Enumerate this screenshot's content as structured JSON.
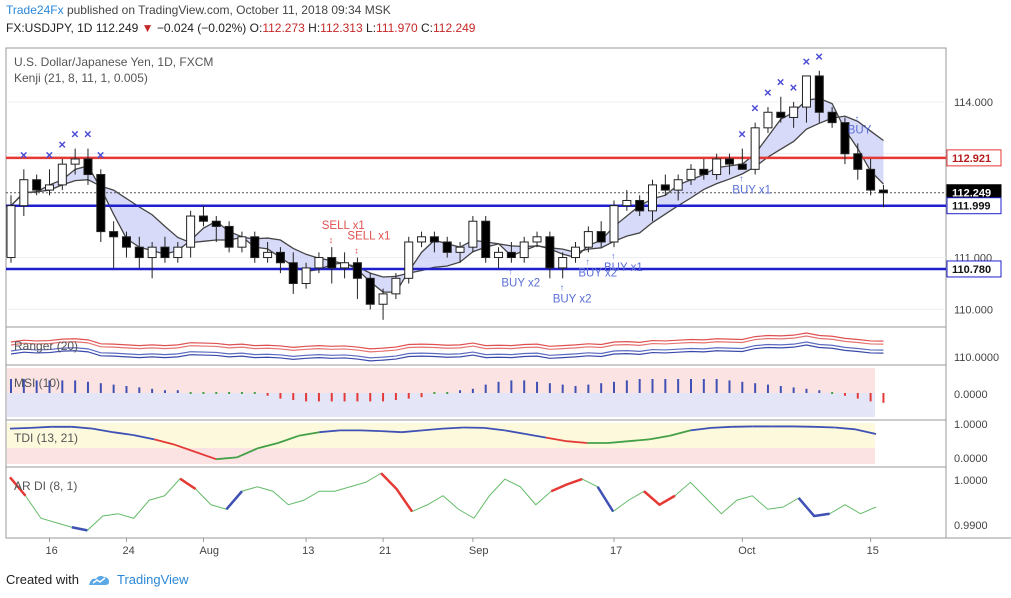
{
  "header": {
    "brand": "Trade24Fx",
    "published_text": "published on TradingView.com, October 11, 2018 09:34 MSK",
    "symbol": "FX:USDJPY, 1D",
    "last": "112.249",
    "change": "−0.024 (−0.02%)",
    "o_label": "O:",
    "o_val": "112.273",
    "h_label": "H:",
    "h_val": "112.313",
    "l_label": "L:",
    "l_val": "111.970",
    "c_label": "C:",
    "c_val": "112.249"
  },
  "legend": {
    "title": "U.S. Dollar/Japanese Yen, 1D, FXCM",
    "kenji": "Kenji (21, 8, 11, 1, 0.005)",
    "ranger": "Ranger (20)",
    "msi": "MSI (10)",
    "tdi": "TDI (13, 21)",
    "ardi": "AR DI (8, 1)"
  },
  "footer": {
    "created_with": "Created with",
    "tradingview": "TradingView"
  },
  "colors": {
    "up": "#ffffff",
    "down": "#000000",
    "red_level": "#e53935",
    "blue_level": "#1f1fcc",
    "cloud_blue": "#c9cdf5",
    "cloud_green": "#d8f2d0",
    "signal_blue": "#5b6fd6",
    "signal_red": "#e05050"
  },
  "chart_data": {
    "type": "candlestick",
    "title": "U.S. Dollar/Japanese Yen, 1D, FXCM",
    "ylim": [
      109.7,
      115.0
    ],
    "y_ticks": [
      "114.000",
      "111.000",
      "110.000"
    ],
    "x_ticks": [
      "16",
      "24",
      "Aug",
      "13",
      "21",
      "Sep",
      "17",
      "Oct",
      "15"
    ],
    "levels": [
      {
        "value": 112.921,
        "label": "112.921",
        "color": "red"
      },
      {
        "value": 112.249,
        "label": "112.249",
        "color": "black"
      },
      {
        "value": 111.999,
        "label": "111.999",
        "color": "blue"
      },
      {
        "value": 110.78,
        "label": "110.780",
        "color": "blue"
      }
    ],
    "candles": [
      [
        111.0,
        112.2,
        110.9,
        112.0
      ],
      [
        112.0,
        112.7,
        111.8,
        112.5
      ],
      [
        112.5,
        112.6,
        112.2,
        112.3
      ],
      [
        112.3,
        112.7,
        112.2,
        112.4
      ],
      [
        112.4,
        112.9,
        112.3,
        112.8
      ],
      [
        112.8,
        113.1,
        112.6,
        112.9
      ],
      [
        112.9,
        113.1,
        112.4,
        112.6
      ],
      [
        112.6,
        112.7,
        111.3,
        111.5
      ],
      [
        111.5,
        111.7,
        110.8,
        111.4
      ],
      [
        111.4,
        111.5,
        111.0,
        111.2
      ],
      [
        111.2,
        111.4,
        110.8,
        111.0
      ],
      [
        111.0,
        111.3,
        110.6,
        111.2
      ],
      [
        111.2,
        111.4,
        110.9,
        111.0
      ],
      [
        111.0,
        111.3,
        110.9,
        111.2
      ],
      [
        111.2,
        111.9,
        111.0,
        111.8
      ],
      [
        111.8,
        112.0,
        111.6,
        111.7
      ],
      [
        111.7,
        111.8,
        111.3,
        111.6
      ],
      [
        111.6,
        111.7,
        111.1,
        111.2
      ],
      [
        111.2,
        111.5,
        111.1,
        111.4
      ],
      [
        111.4,
        111.5,
        110.9,
        111.0
      ],
      [
        111.0,
        111.3,
        110.9,
        111.1
      ],
      [
        111.1,
        111.2,
        110.7,
        110.9
      ],
      [
        110.9,
        111.1,
        110.3,
        110.5
      ],
      [
        110.5,
        110.9,
        110.4,
        110.8
      ],
      [
        110.8,
        111.1,
        110.7,
        111.0
      ],
      [
        111.0,
        111.2,
        110.5,
        110.8
      ],
      [
        110.8,
        111.1,
        110.6,
        110.9
      ],
      [
        110.9,
        111.0,
        110.2,
        110.6
      ],
      [
        110.6,
        110.7,
        110.0,
        110.1
      ],
      [
        110.1,
        110.4,
        109.8,
        110.3
      ],
      [
        110.3,
        110.7,
        110.2,
        110.6
      ],
      [
        110.6,
        111.4,
        110.5,
        111.3
      ],
      [
        111.3,
        111.5,
        111.2,
        111.4
      ],
      [
        111.4,
        111.5,
        111.1,
        111.3
      ],
      [
        111.3,
        111.4,
        111.0,
        111.1
      ],
      [
        111.1,
        111.3,
        110.9,
        111.2
      ],
      [
        111.2,
        111.8,
        111.1,
        111.7
      ],
      [
        111.7,
        111.8,
        110.9,
        111.0
      ],
      [
        111.0,
        111.2,
        110.8,
        111.1
      ],
      [
        111.1,
        111.3,
        110.9,
        111.0
      ],
      [
        111.0,
        111.4,
        110.9,
        111.3
      ],
      [
        111.3,
        111.5,
        111.2,
        111.4
      ],
      [
        111.4,
        111.5,
        110.6,
        110.8
      ],
      [
        110.8,
        111.1,
        110.6,
        111.0
      ],
      [
        111.0,
        111.3,
        110.9,
        111.2
      ],
      [
        111.2,
        111.6,
        111.1,
        111.5
      ],
      [
        111.5,
        111.7,
        111.2,
        111.3
      ],
      [
        111.3,
        112.1,
        111.2,
        112.0
      ],
      [
        112.0,
        112.3,
        111.9,
        112.1
      ],
      [
        112.1,
        112.2,
        111.8,
        111.9
      ],
      [
        111.9,
        112.5,
        111.7,
        112.4
      ],
      [
        112.4,
        112.6,
        112.2,
        112.3
      ],
      [
        112.3,
        112.6,
        112.1,
        112.5
      ],
      [
        112.5,
        112.8,
        112.4,
        112.7
      ],
      [
        112.7,
        112.9,
        112.5,
        112.6
      ],
      [
        112.6,
        113.0,
        112.5,
        112.9
      ],
      [
        112.9,
        113.0,
        112.6,
        112.8
      ],
      [
        112.8,
        113.1,
        112.7,
        112.7
      ],
      [
        112.7,
        113.6,
        112.6,
        113.5
      ],
      [
        113.5,
        113.9,
        113.4,
        113.8
      ],
      [
        113.8,
        114.1,
        113.6,
        113.7
      ],
      [
        113.7,
        114.0,
        113.5,
        113.9
      ],
      [
        113.9,
        114.5,
        113.6,
        114.5
      ],
      [
        114.5,
        114.6,
        113.6,
        113.8
      ],
      [
        113.8,
        113.9,
        113.5,
        113.6
      ],
      [
        113.6,
        113.7,
        112.8,
        113.0
      ],
      [
        113.0,
        113.2,
        112.5,
        112.7
      ],
      [
        112.7,
        112.9,
        112.2,
        112.3
      ],
      [
        112.3,
        112.4,
        111.97,
        112.249
      ]
    ],
    "signals": [
      {
        "label": "SELL x1"
      },
      {
        "label": "SELL x1"
      },
      {
        "label": "BUY x2"
      },
      {
        "label": "BUY x2"
      },
      {
        "label": "BUY x2"
      },
      {
        "label": "BUY x1"
      },
      {
        "label": "BUY x1"
      },
      {
        "label": "BUY"
      }
    ],
    "ranger": {
      "ticks": [
        "110.0000"
      ]
    },
    "msi": {
      "ticks": [
        "0.0000"
      ],
      "values": [
        1,
        1,
        0.9,
        0.9,
        0.9,
        0.9,
        0.8,
        0.7,
        0.6,
        0.5,
        0.4,
        0.3,
        0.2,
        0.2,
        0.1,
        0.1,
        0.1,
        0.1,
        0.1,
        0.1,
        -0.2,
        -0.4,
        -0.5,
        -0.6,
        -0.6,
        -0.6,
        -0.6,
        -0.6,
        -0.6,
        -0.6,
        -0.5,
        -0.4,
        -0.3,
        -0.1,
        0.1,
        0.2,
        0.3,
        0.6,
        0.8,
        0.9,
        0.9,
        0.8,
        0.7,
        0.6,
        0.5,
        0.6,
        0.7,
        0.8,
        0.9,
        1,
        1,
        1,
        1,
        1,
        1,
        1,
        0.9,
        0.8,
        0.7,
        0.6,
        0.5,
        0.4,
        0.3,
        0.2,
        0.1,
        -0.2,
        -0.4,
        -0.6,
        -0.7
      ]
    },
    "tdi": {
      "ticks": [
        "1.0000",
        "0.0000"
      ],
      "values": [
        0.9,
        0.92,
        0.95,
        0.95,
        0.9,
        0.8,
        0.72,
        0.6,
        0.45,
        0.25,
        0.05,
        0.1,
        0.35,
        0.5,
        0.7,
        0.8,
        0.85,
        0.85,
        0.83,
        0.8,
        0.85,
        0.9,
        0.93,
        0.92,
        0.85,
        0.75,
        0.65,
        0.55,
        0.5,
        0.5,
        0.55,
        0.6,
        0.7,
        0.85,
        0.92,
        0.95,
        0.96,
        0.96,
        0.96,
        0.95,
        0.93,
        0.88,
        0.75
      ]
    },
    "ardi": {
      "ticks": [
        "1.0000",
        "0.9900"
      ],
      "ylim": [
        0.988,
        1.002
      ],
      "values": [
        1.0006,
        0.9965,
        0.9915,
        0.9905,
        0.9895,
        0.9888,
        0.992,
        0.9925,
        0.9915,
        0.9955,
        0.9965,
        1.0003,
        0.998,
        0.9945,
        0.9935,
        0.9975,
        0.9985,
        0.9975,
        0.9945,
        0.9955,
        0.9975,
        0.9975,
        0.9985,
        0.9995,
        1.0015,
        0.998,
        0.993,
        0.9945,
        0.9965,
        0.9935,
        0.9915,
        0.9965,
        1.0002,
        0.9985,
        0.9945,
        0.9975,
        0.999,
        1.0002,
        0.9985,
        0.993,
        0.9955,
        0.9975,
        0.9945,
        0.9965,
        0.9995,
        0.996,
        0.9925,
        0.9955,
        0.9965,
        0.9935,
        0.994,
        0.996,
        0.992,
        0.9925,
        0.9945,
        0.9925,
        0.994
      ],
      "highlight": [
        [
          0,
          1,
          "red"
        ],
        [
          4,
          5,
          "blue"
        ],
        [
          11,
          12,
          "red"
        ],
        [
          14,
          15,
          "blue"
        ],
        [
          24,
          26,
          "red"
        ],
        [
          35,
          37,
          "red"
        ],
        [
          38,
          39,
          "blue"
        ],
        [
          41,
          43,
          "red"
        ],
        [
          51,
          53,
          "blue"
        ]
      ]
    }
  }
}
